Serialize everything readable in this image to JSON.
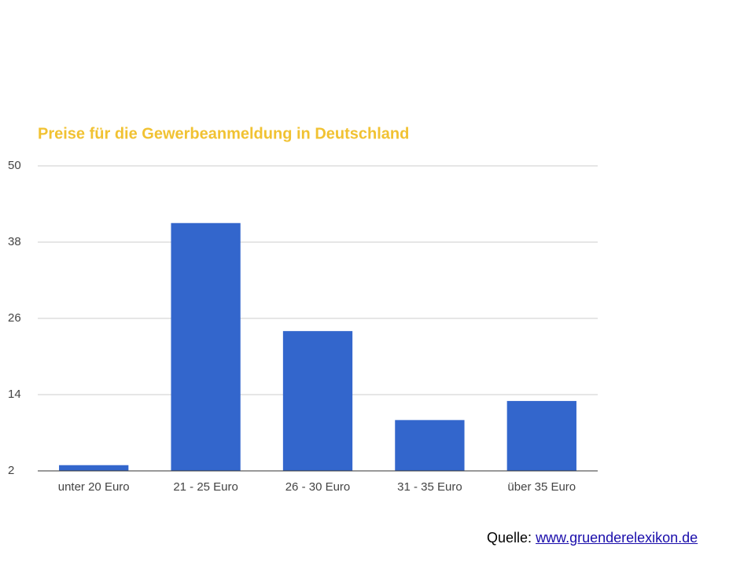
{
  "chart_data": {
    "type": "bar",
    "title": "Preise für die Gewerbeanmeldung in Deutschland",
    "categories": [
      "unter 20 Euro",
      "21 - 25 Euro",
      "26 - 30 Euro",
      "31 - 35 Euro",
      "über 35 Euro"
    ],
    "values": [
      2.9,
      41,
      24,
      10,
      13
    ],
    "color": "#3366cc",
    "ylim": [
      2,
      50
    ],
    "yticks": [
      2,
      14,
      26,
      38,
      50
    ],
    "grid": true
  },
  "source": {
    "label": "Quelle:",
    "link": "www.gruenderelexikon.de"
  }
}
